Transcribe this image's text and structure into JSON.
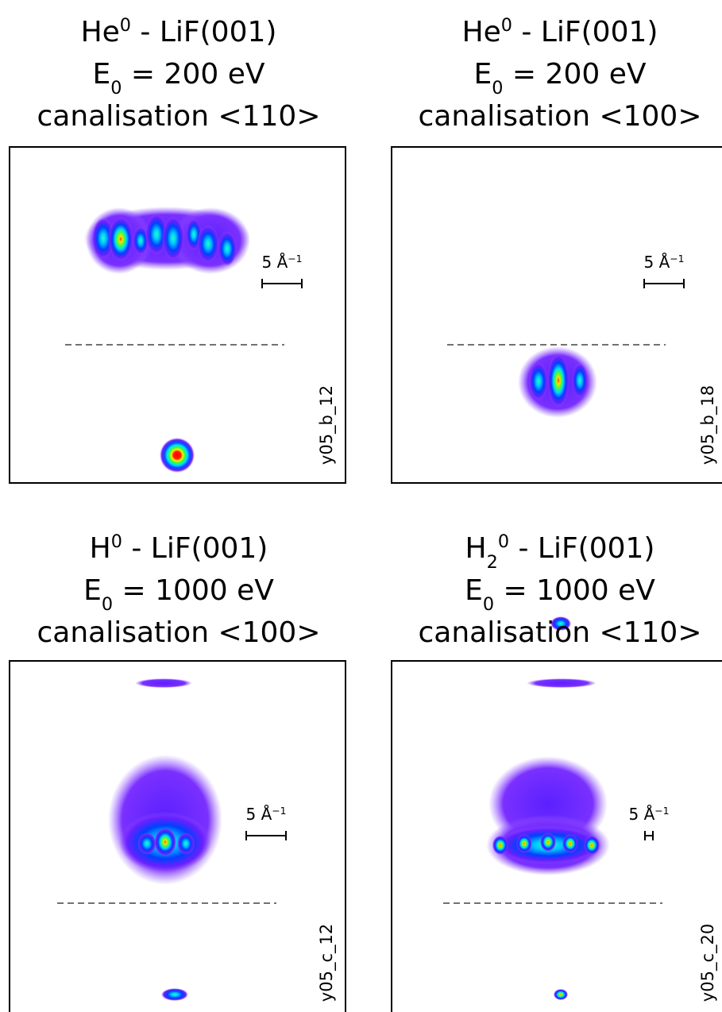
{
  "panels": [
    {
      "title": [
        [
          {
            "text": "He"
          },
          {
            "text": "0",
            "pos": "sup"
          },
          {
            "text": " - LiF(001)"
          }
        ],
        [
          {
            "text": "E"
          },
          {
            "text": "0",
            "pos": "sub"
          },
          {
            "text": " = 200 eV"
          }
        ],
        [
          {
            "text": "canalisation <110>"
          }
        ]
      ],
      "scale": [
        {
          "text": "5 Å"
        },
        {
          "text": "−1",
          "pos": "sup"
        }
      ],
      "id": "y05_b_12"
    },
    {
      "title": [
        [
          {
            "text": "He"
          },
          {
            "text": "0",
            "pos": "sup"
          },
          {
            "text": " - LiF(001)"
          }
        ],
        [
          {
            "text": "E"
          },
          {
            "text": "0",
            "pos": "sub"
          },
          {
            "text": " = 200 eV"
          }
        ],
        [
          {
            "text": "canalisation <100>"
          }
        ]
      ],
      "scale": [
        {
          "text": "5 Å"
        },
        {
          "text": "−1",
          "pos": "sup"
        }
      ],
      "id": "y05_b_18"
    },
    {
      "title": [
        [
          {
            "text": "H"
          },
          {
            "text": "0",
            "pos": "sup"
          },
          {
            "text": " - LiF(001)"
          }
        ],
        [
          {
            "text": "E"
          },
          {
            "text": "0",
            "pos": "sub"
          },
          {
            "text": " = 1000 eV"
          }
        ],
        [
          {
            "text": "canalisation <100>"
          }
        ]
      ],
      "scale": [
        {
          "text": "5 Å"
        },
        {
          "text": "−1",
          "pos": "sup"
        }
      ],
      "id": "y05_c_12"
    },
    {
      "title": [
        [
          {
            "text": "H"
          },
          {
            "text": "2",
            "pos": "sub"
          },
          {
            "text": "0",
            "pos": "sup"
          },
          {
            "text": " - LiF(001)"
          }
        ],
        [
          {
            "text": "E"
          },
          {
            "text": "0",
            "pos": "sub"
          },
          {
            "text": " = 1000 eV"
          }
        ],
        [
          {
            "text": "canalisation <110>"
          }
        ]
      ],
      "scale": [
        {
          "text": "5 Å"
        },
        {
          "text": "−1",
          "pos": "sup"
        }
      ],
      "id": "y05_c_20"
    }
  ]
}
